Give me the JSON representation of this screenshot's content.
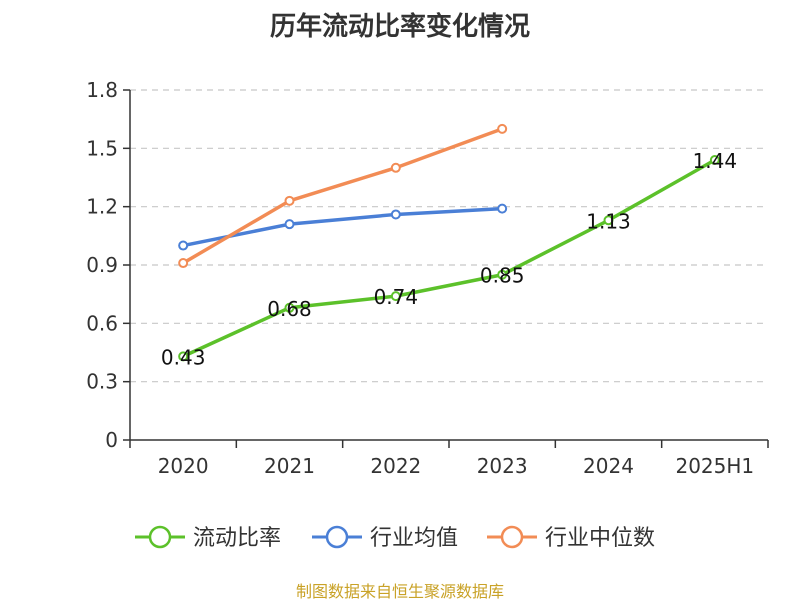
{
  "title": "历年流动比率变化情况",
  "source": "制图数据来自恒生聚源数据库",
  "chart_data": {
    "type": "line",
    "categories": [
      "2020",
      "2021",
      "2022",
      "2023",
      "2024",
      "2025H1"
    ],
    "ylim": [
      0,
      1.8
    ],
    "yticks": [
      "0",
      "0.3",
      "0.6",
      "0.9",
      "1.2",
      "1.5",
      "1.8"
    ],
    "grid": true,
    "legend_position": "bottom",
    "series": [
      {
        "name": "流动比率",
        "color": "#5cc12a",
        "values": [
          0.43,
          0.68,
          0.74,
          0.85,
          1.13,
          1.44
        ],
        "labels": [
          "0.43",
          "0.68",
          "0.74",
          "0.85",
          "1.13",
          "1.44"
        ]
      },
      {
        "name": "行业均值",
        "color": "#4a7fd6",
        "values": [
          1.0,
          1.11,
          1.16,
          1.19,
          null,
          null
        ]
      },
      {
        "name": "行业中位数",
        "color": "#f28c55",
        "values": [
          0.91,
          1.23,
          1.4,
          1.6,
          null,
          null
        ]
      }
    ]
  }
}
